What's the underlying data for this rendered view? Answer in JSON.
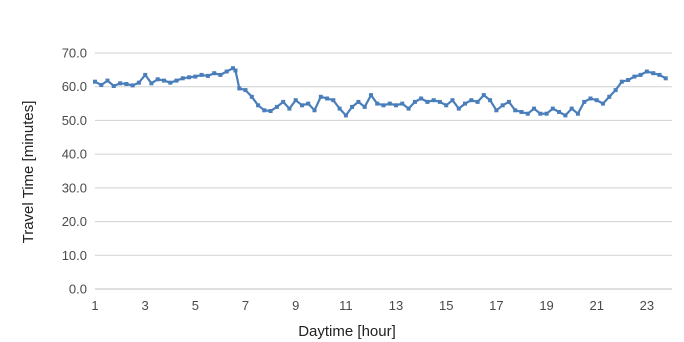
{
  "chart_data": {
    "type": "line",
    "title": "",
    "xlabel": "Daytime [hour]",
    "ylabel": "Travel Time [minutes]",
    "xlim": [
      1,
      24
    ],
    "ylim": [
      0,
      70
    ],
    "x_ticks": [
      1,
      3,
      5,
      7,
      9,
      11,
      13,
      15,
      17,
      19,
      21,
      23
    ],
    "y_ticks": [
      "0.0",
      "10.0",
      "20.0",
      "30.0",
      "40.0",
      "50.0",
      "60.0",
      "70.0"
    ],
    "y_tick_values": [
      0,
      10,
      20,
      30,
      40,
      50,
      60,
      70
    ],
    "grid": true,
    "legend": "none",
    "series_color": "#4a7ebb",
    "grid_color": "#d0d0d0",
    "series": [
      {
        "marker": "square",
        "x": [
          1.0,
          1.25,
          1.5,
          1.75,
          2.0,
          2.25,
          2.5,
          2.75,
          3.0,
          3.25,
          3.5,
          3.75,
          4.0,
          4.25,
          4.5,
          4.75,
          5.0,
          5.25,
          5.5,
          5.75,
          6.0,
          6.25,
          6.5,
          6.6,
          6.75,
          7.0,
          7.25,
          7.5,
          7.75,
          8.0,
          8.25,
          8.5,
          8.75,
          9.0,
          9.25,
          9.5,
          9.75,
          10.0,
          10.25,
          10.5,
          10.75,
          11.0,
          11.25,
          11.5,
          11.75,
          12.0,
          12.25,
          12.5,
          12.75,
          13.0,
          13.25,
          13.5,
          13.75,
          14.0,
          14.25,
          14.5,
          14.75,
          15.0,
          15.25,
          15.5,
          15.75,
          16.0,
          16.25,
          16.5,
          16.75,
          17.0,
          17.25,
          17.5,
          17.75,
          18.0,
          18.25,
          18.5,
          18.75,
          19.0,
          19.25,
          19.5,
          19.75,
          20.0,
          20.25,
          20.5,
          20.75,
          21.0,
          21.25,
          21.5,
          21.75,
          22.0,
          22.25,
          22.5,
          22.75,
          23.0,
          23.25,
          23.5,
          23.75
        ],
        "y": [
          61.5,
          60.5,
          61.8,
          60.2,
          61.0,
          60.8,
          60.4,
          61.2,
          63.5,
          61.0,
          62.2,
          61.8,
          61.2,
          61.8,
          62.5,
          62.8,
          63.0,
          63.5,
          63.2,
          64.0,
          63.5,
          64.5,
          65.5,
          64.8,
          59.5,
          59.0,
          57.0,
          54.5,
          53.0,
          52.8,
          54.0,
          55.5,
          53.5,
          56.0,
          54.5,
          55.0,
          53.0,
          57.0,
          56.5,
          56.0,
          53.5,
          51.5,
          54.0,
          55.5,
          54.0,
          57.5,
          55.0,
          54.5,
          55.0,
          54.5,
          55.0,
          53.5,
          55.5,
          56.5,
          55.5,
          56.0,
          55.5,
          54.5,
          56.0,
          53.5,
          55.0,
          56.0,
          55.5,
          57.5,
          56.0,
          53.0,
          54.5,
          55.5,
          53.0,
          52.5,
          52.0,
          53.5,
          52.0,
          52.0,
          53.5,
          52.5,
          51.5,
          53.5,
          52.0,
          55.5,
          56.5,
          56.0,
          55.0,
          57.0,
          59.0,
          61.5,
          62.0,
          63.0,
          63.5,
          64.5,
          64.0,
          63.5,
          62.5
        ]
      }
    ]
  }
}
